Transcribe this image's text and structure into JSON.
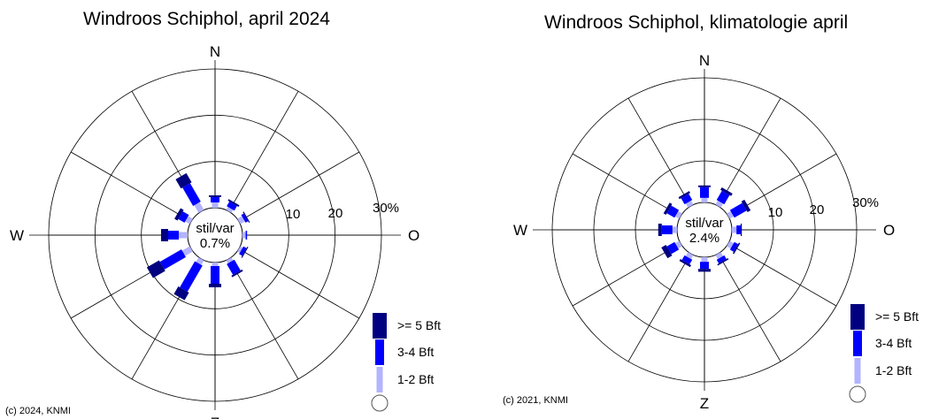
{
  "compass": {
    "N": "N",
    "E": "O",
    "S": "Z",
    "W": "W"
  },
  "legend": {
    "high": ">= 5 Bft",
    "mid": "3-4 Bft",
    "low": "1-2 Bft"
  },
  "ring_labels": [
    "10",
    "20",
    "30%"
  ],
  "colors": {
    "low": "#b3b3ff",
    "mid": "#0000ff",
    "high": "#000080",
    "grid": "#000000"
  },
  "chart_data": [
    {
      "type": "windrose",
      "title": "Windroos Schiphol, april 2024",
      "center_label": "stil/var",
      "calm": "0.7%",
      "copyright": "(c) 2024, KNMI",
      "rings": [
        10,
        20,
        30
      ],
      "ring_unit": "%",
      "directions_deg": [
        0,
        30,
        60,
        90,
        120,
        150,
        180,
        210,
        240,
        270,
        300,
        330
      ],
      "series": [
        {
          "name": "1-2 Bft",
          "values": [
            1.5,
            1.0,
            1.5,
            0.9,
            0.8,
            1.0,
            1.0,
            1.5,
            2.5,
            2.5,
            1.5,
            2.5
          ]
        },
        {
          "name": "3-4 Bft",
          "values": [
            1.5,
            1.5,
            0.8,
            0.4,
            1.0,
            3.5,
            5.0,
            8.5,
            7.0,
            3.0,
            2.0,
            6.0
          ]
        },
        {
          "name": ">= 5 Bft",
          "values": [
            0.5,
            0.5,
            0.3,
            0.0,
            0.3,
            0.5,
            1.0,
            2.5,
            4.0,
            2.0,
            1.0,
            3.0
          ]
        }
      ]
    },
    {
      "type": "windrose",
      "title": "Windroos Schiphol, klimatologie april",
      "center_label": "stil/var",
      "calm": "2.4%",
      "copyright": "(c) 2021, KNMI",
      "rings": [
        10,
        20,
        30
      ],
      "ring_unit": "%",
      "directions_deg": [
        0,
        30,
        60,
        90,
        120,
        150,
        180,
        210,
        240,
        270,
        300,
        330
      ],
      "series": [
        {
          "name": "1-2 Bft",
          "values": [
            1.3,
            1.3,
            1.3,
            1.3,
            1.3,
            1.3,
            1.3,
            1.3,
            1.3,
            1.3,
            1.3,
            1.3
          ]
        },
        {
          "name": "3-4 Bft",
          "values": [
            3.0,
            3.0,
            4.0,
            1.2,
            1.2,
            1.2,
            2.0,
            1.5,
            2.5,
            3.0,
            2.5,
            2.0
          ]
        },
        {
          "name": ">= 5 Bft",
          "values": [
            0.5,
            0.8,
            1.0,
            0.3,
            0.4,
            0.4,
            0.8,
            0.6,
            1.5,
            1.0,
            0.8,
            0.6
          ]
        }
      ]
    }
  ]
}
